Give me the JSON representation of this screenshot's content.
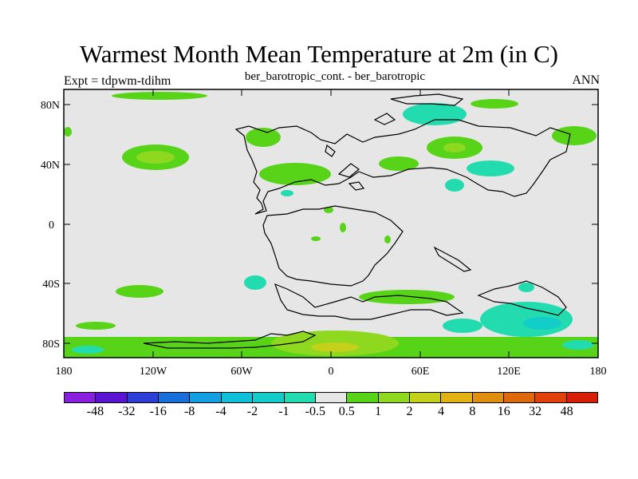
{
  "title": "Warmest Month Mean Temperature at 2m (in C)",
  "left_label": "Expt = tdpwm-tdihm",
  "center_label": "ber_barotropic_cont. - ber_barotropic",
  "right_label": "ANN",
  "lat_ticks": [
    "80N",
    "40N",
    "0",
    "40S",
    "80S"
  ],
  "lon_ticks": [
    "180",
    "120W",
    "60W",
    "0",
    "60E",
    "120E",
    "180"
  ],
  "colorbar": {
    "colors": [
      "#8a1fe0",
      "#5a14d2",
      "#2d3fd6",
      "#1770da",
      "#12a0e0",
      "#10bfd8",
      "#12cdc8",
      "#22dcb0",
      "#e6e6e6",
      "#58d418",
      "#8fd820",
      "#c4d01a",
      "#e0b312",
      "#e08e0e",
      "#e0680c",
      "#e0420a",
      "#d81e06"
    ],
    "labels": [
      "-48",
      "-32",
      "-16",
      "-8",
      "-4",
      "-2",
      "-1",
      "-0.5",
      "0.5",
      "1",
      "2",
      "4",
      "8",
      "16",
      "32",
      "48"
    ]
  },
  "colors": {
    "background": "#e6e6e6",
    "positive_light": "#58d418",
    "positive_mid": "#8fd820",
    "positive_high": "#c4d01a",
    "negative_light": "#22dcb0",
    "negative_mid": "#12cdc8"
  }
}
